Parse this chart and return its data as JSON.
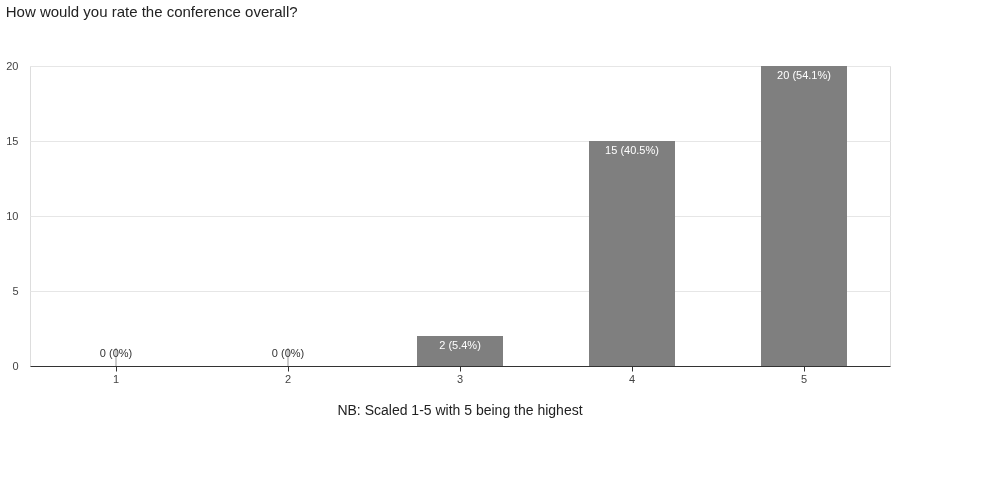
{
  "chart_data": {
    "type": "bar",
    "title": "How would you rate the conference overall?",
    "categories": [
      "1",
      "2",
      "3",
      "4",
      "5"
    ],
    "values": [
      0,
      0,
      2,
      15,
      20
    ],
    "value_labels": [
      "0 (0%)",
      "0 (0%)",
      "2 (5.4%)",
      "15 (40.5%)",
      "20 (54.1%)"
    ],
    "color": "#7f7f7f",
    "ylim": [
      0,
      20
    ],
    "yticks": [
      0,
      5,
      10,
      15,
      20
    ],
    "grid": "y",
    "annotations": [
      "NB: Scaled 1-5 with 5 being the highest"
    ]
  }
}
